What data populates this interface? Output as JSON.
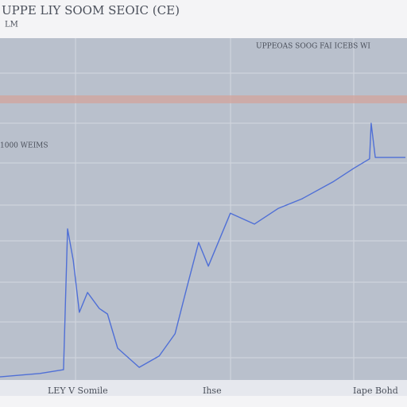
{
  "chart_data": {
    "type": "line",
    "title": "UPPE LIY SOOM SEOIC (CE)",
    "subtitle": "LM",
    "annotations": [
      "UPPEOAS SOOG FAI ICEBS WI",
      "1000 WEIMS"
    ],
    "x_labels": [
      "LEY V Somile",
      "Ihse",
      "Iape Bohd"
    ],
    "xlim": [
      0,
      100
    ],
    "ylim": [
      0,
      100
    ],
    "reference_line": {
      "value": 82.1,
      "color": "#d3a49c"
    },
    "series": [
      {
        "color": "#4f6fd6",
        "x": [
          0,
          9.8,
          15.6,
          16.6,
          18.0,
          19.5,
          21.5,
          24.4,
          26.4,
          28.9,
          34.2,
          39.1,
          43.0,
          45.9,
          48.8,
          51.2,
          56.6,
          62.5,
          68.4,
          74.2,
          82.0,
          86.9,
          90.8,
          91.2,
          92.2,
          99.6
        ],
        "values": [
          0.9,
          1.9,
          3.0,
          44.2,
          34.9,
          19.8,
          25.6,
          20.9,
          19.3,
          9.3,
          3.7,
          7.0,
          13.5,
          27.0,
          40.2,
          33.3,
          48.8,
          45.6,
          50.2,
          53.0,
          58.1,
          61.9,
          64.7,
          75.1,
          65.1,
          65.1
        ]
      }
    ]
  }
}
